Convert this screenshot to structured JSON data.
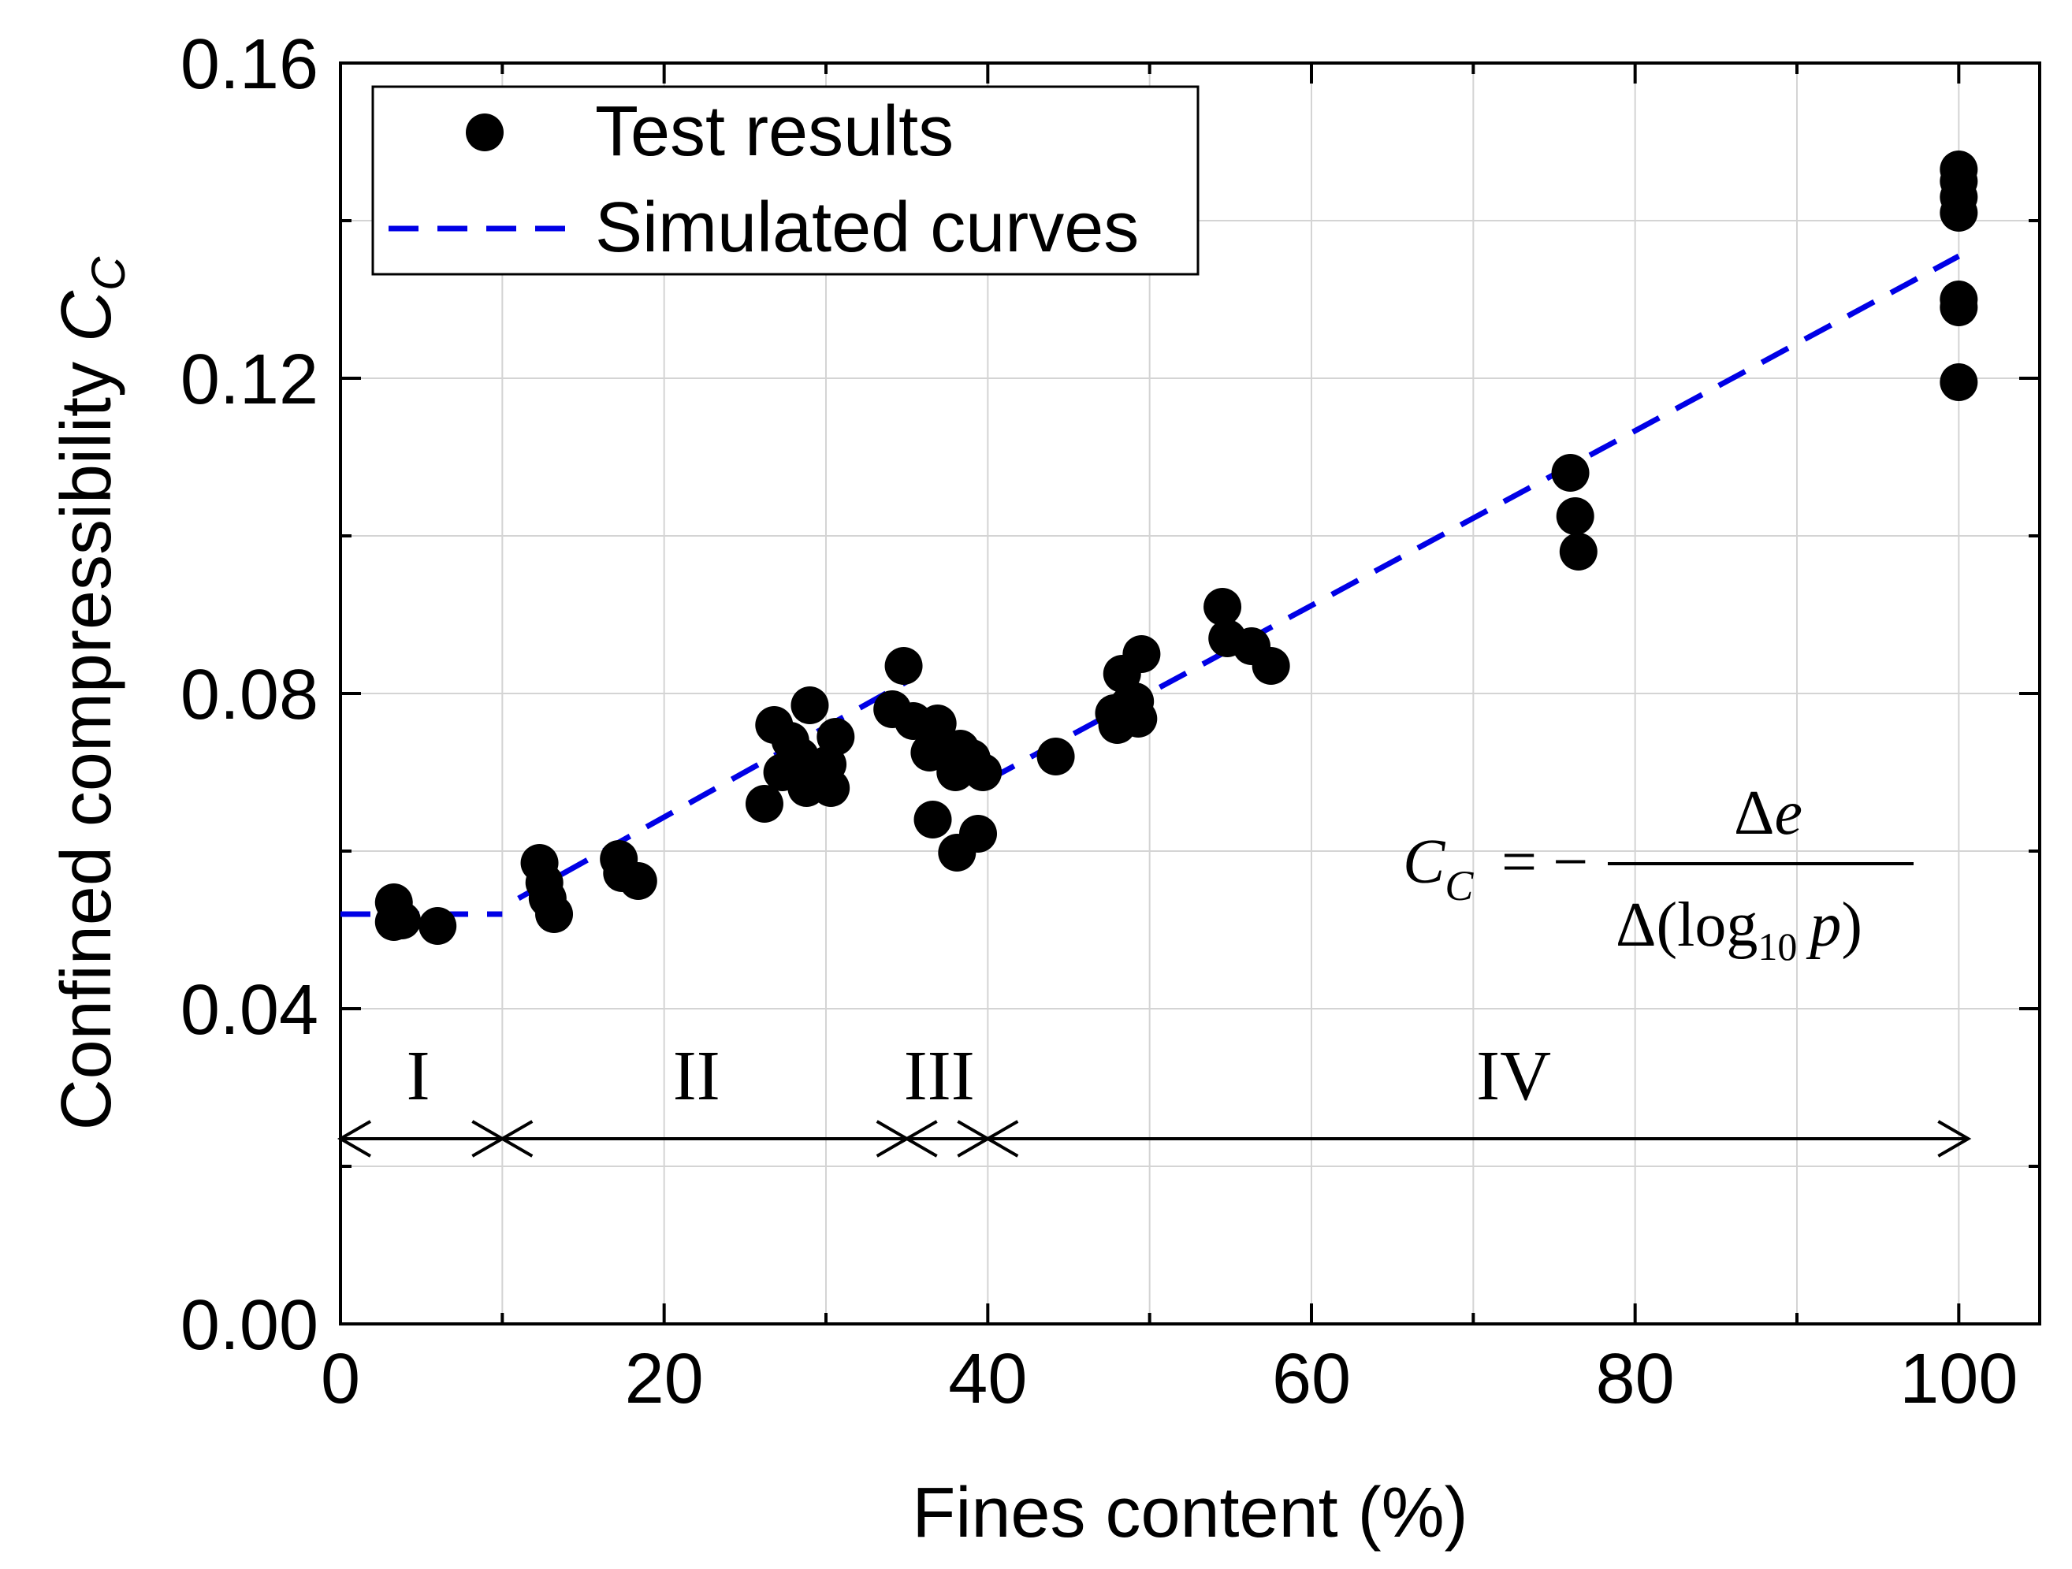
{
  "chart_data": {
    "type": "scatter",
    "xlabel": "Fines content (%)",
    "ylabel_main": "Confined compressibility ",
    "ylabel_var": "C",
    "ylabel_sub": "C",
    "xlim": [
      0,
      105
    ],
    "ylim": [
      0,
      0.16
    ],
    "x_major_ticks": [
      0,
      20,
      40,
      60,
      80,
      100
    ],
    "x_tick_labels": [
      "0",
      "20",
      "40",
      "60",
      "80",
      "100"
    ],
    "x_minor_ticks": [
      10,
      30,
      50,
      70,
      90
    ],
    "y_major_ticks": [
      0,
      0.04,
      0.08,
      0.12,
      0.16
    ],
    "y_tick_labels": [
      "0.00",
      "0.04",
      "0.08",
      "0.12",
      "0.16"
    ],
    "y_minor_ticks": [
      0.02,
      0.06,
      0.1,
      0.14
    ],
    "grid": true,
    "legend": {
      "position": "top-left",
      "entries": [
        "Test results",
        "Simulated curves"
      ]
    },
    "series": [
      {
        "name": "Test results",
        "kind": "points",
        "color": "#000000",
        "points": [
          [
            3.3,
            0.0535
          ],
          [
            3.3,
            0.051
          ],
          [
            3.8,
            0.0512
          ],
          [
            6.0,
            0.0505
          ],
          [
            12.3,
            0.0585
          ],
          [
            12.6,
            0.056
          ],
          [
            12.8,
            0.054
          ],
          [
            13.2,
            0.052
          ],
          [
            17.2,
            0.059
          ],
          [
            17.4,
            0.0572
          ],
          [
            18.4,
            0.0562
          ],
          [
            26.2,
            0.066
          ],
          [
            26.8,
            0.076
          ],
          [
            27.3,
            0.07
          ],
          [
            27.8,
            0.074
          ],
          [
            28.4,
            0.072
          ],
          [
            28.8,
            0.068
          ],
          [
            29.0,
            0.0785
          ],
          [
            29.4,
            0.07
          ],
          [
            30.1,
            0.071
          ],
          [
            30.3,
            0.068
          ],
          [
            30.6,
            0.0745
          ],
          [
            34.1,
            0.078
          ],
          [
            34.8,
            0.0835
          ],
          [
            35.4,
            0.0765
          ],
          [
            36.4,
            0.0725
          ],
          [
            36.6,
            0.064
          ],
          [
            36.9,
            0.0762
          ],
          [
            37.6,
            0.0722
          ],
          [
            38.0,
            0.07
          ],
          [
            38.3,
            0.073
          ],
          [
            38.1,
            0.0598
          ],
          [
            39.0,
            0.0718
          ],
          [
            39.4,
            0.0622
          ],
          [
            39.7,
            0.07
          ],
          [
            44.2,
            0.072
          ],
          [
            47.8,
            0.0775
          ],
          [
            48.0,
            0.076
          ],
          [
            48.3,
            0.0825
          ],
          [
            48.7,
            0.0785
          ],
          [
            49.1,
            0.079
          ],
          [
            49.3,
            0.0768
          ],
          [
            49.5,
            0.085
          ],
          [
            54.5,
            0.091
          ],
          [
            54.8,
            0.087
          ],
          [
            56.3,
            0.086
          ],
          [
            57.5,
            0.0835
          ],
          [
            76.0,
            0.108
          ],
          [
            76.3,
            0.1025
          ],
          [
            76.5,
            0.098
          ],
          [
            100,
            0.1465
          ],
          [
            100,
            0.145
          ],
          [
            100,
            0.143
          ],
          [
            100,
            0.141
          ],
          [
            100,
            0.13
          ],
          [
            100,
            0.129
          ],
          [
            100,
            0.1195
          ]
        ]
      },
      {
        "name": "Simulated curves",
        "kind": "dashed-lines",
        "color": "#0000e6",
        "segments": [
          [
            [
              0,
              0.052
            ],
            [
              10,
              0.052
            ]
          ],
          [
            [
              11,
              0.054
            ],
            [
              35,
              0.0815
            ]
          ],
          [
            [
              40,
              0.069
            ],
            [
              100,
              0.1355
            ]
          ]
        ]
      }
    ],
    "regions": {
      "labels": [
        "I",
        "II",
        "III",
        "IV"
      ],
      "label_x": [
        4.8,
        22,
        37,
        72.5
      ],
      "label_y": 0.0315,
      "arrow_y": 0.0235,
      "spans": [
        [
          0,
          10
        ],
        [
          10,
          35
        ],
        [
          35,
          40
        ],
        [
          40,
          100
        ]
      ]
    },
    "equation": {
      "lhs_var": "C",
      "lhs_sub": "C",
      "equals_minus": "= −",
      "numerator_delta": "Δ",
      "numerator_var": "e",
      "denominator_prefix": "Δ(log",
      "denominator_sub": "10",
      "denominator_var": "p",
      "denominator_suffix": ")"
    }
  }
}
